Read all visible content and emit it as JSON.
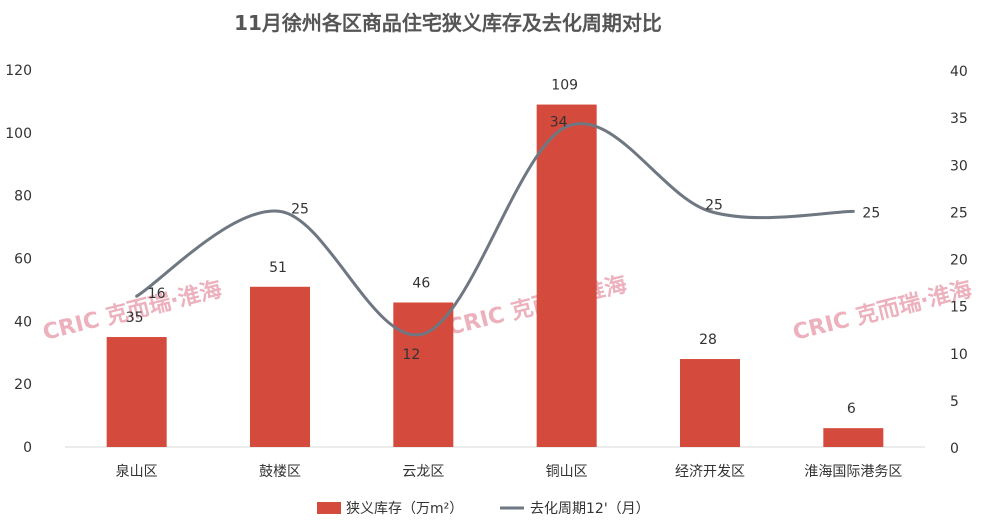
{
  "chart_data": {
    "type": "bar+line",
    "title": "11月徐州各区商品住宅狭义库存及去化周期对比",
    "categories": [
      "泉山区",
      "鼓楼区",
      "云龙区",
      "铜山区",
      "经济开发区",
      "淮海国际港务区"
    ],
    "series": [
      {
        "name": "狭义库存（万m²）",
        "type": "bar",
        "axis": "left",
        "color": "#d44a3c",
        "values": [
          35,
          51,
          46,
          109,
          28,
          6
        ]
      },
      {
        "name": "去化周期12'（月）",
        "type": "line",
        "axis": "right",
        "color": "#6f7782",
        "values": [
          16,
          25,
          12,
          34,
          25,
          25
        ]
      }
    ],
    "y_left": {
      "min": 0,
      "max": 120,
      "ticks": [
        0,
        20,
        40,
        60,
        80,
        100,
        120
      ]
    },
    "y_right": {
      "min": 0,
      "max": 40,
      "ticks": [
        0,
        5,
        10,
        15,
        20,
        25,
        30,
        35,
        40
      ]
    },
    "legend_position": "bottom",
    "grid": false
  },
  "watermark": {
    "text": "CRIC 克而瑞·淮海"
  }
}
